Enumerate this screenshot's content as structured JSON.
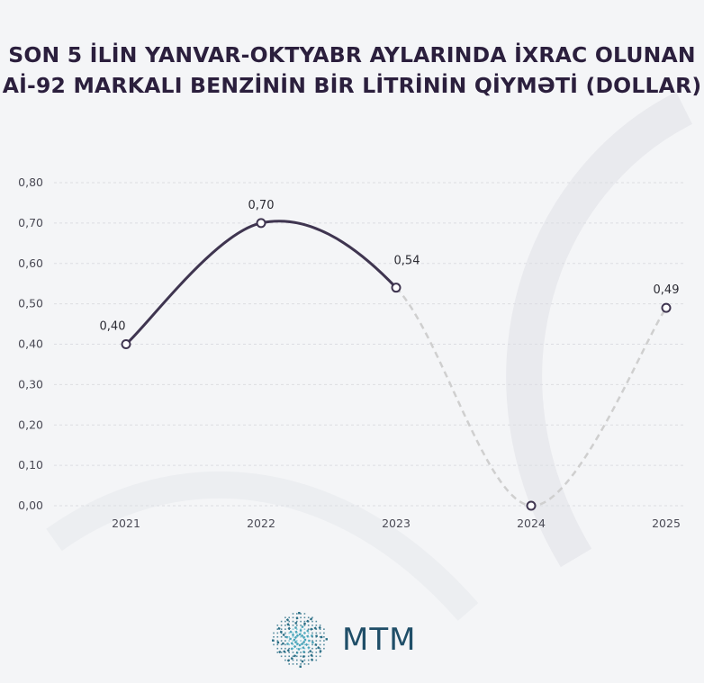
{
  "title": {
    "line1": "SON 5 İLİN YANVAR-OKTYABR AYLARINDA İXRAC OLUNAN",
    "line2": "Aİ-92 MARKALI BENZİNİN BİR LİTRİNİN QİYMƏTİ (DOLLAR)"
  },
  "logo": {
    "text": "MTM",
    "icon": "mtm-starburst-logo-icon",
    "color": "#1f4e68"
  },
  "colors": {
    "solid_line": "#3f3550",
    "dashed_line": "#cfcfcf",
    "grid": "#dcdde2",
    "marker_fill": "#ffffff"
  },
  "chart_data": {
    "type": "line",
    "title": "SON 5 İLİN YANVAR-OKTYABR AYLARINDA İXRAC OLUNAN Aİ-92 MARKALI BENZİNİN BİR LİTRİNİN QİYMƏTİ (DOLLAR)",
    "categories": [
      "2021",
      "2022",
      "2023",
      "2024",
      "2025"
    ],
    "series": [
      {
        "values": [
          0.4,
          0.7,
          0.54,
          0.0,
          0.49
        ],
        "data_labels": [
          "0,40",
          "0,70",
          "0,54",
          "",
          "0,49"
        ],
        "solid_segments": [
          [
            0,
            2
          ]
        ],
        "dashed_segments": [
          [
            2,
            4
          ]
        ]
      }
    ],
    "y_ticks": [
      "0,00",
      "0,10",
      "0,20",
      "0,30",
      "0,40",
      "0,50",
      "0,60",
      "0,70",
      "0,80"
    ],
    "ylim": [
      0,
      0.8
    ],
    "grid": "horizontal-dashed",
    "legend": "none"
  }
}
